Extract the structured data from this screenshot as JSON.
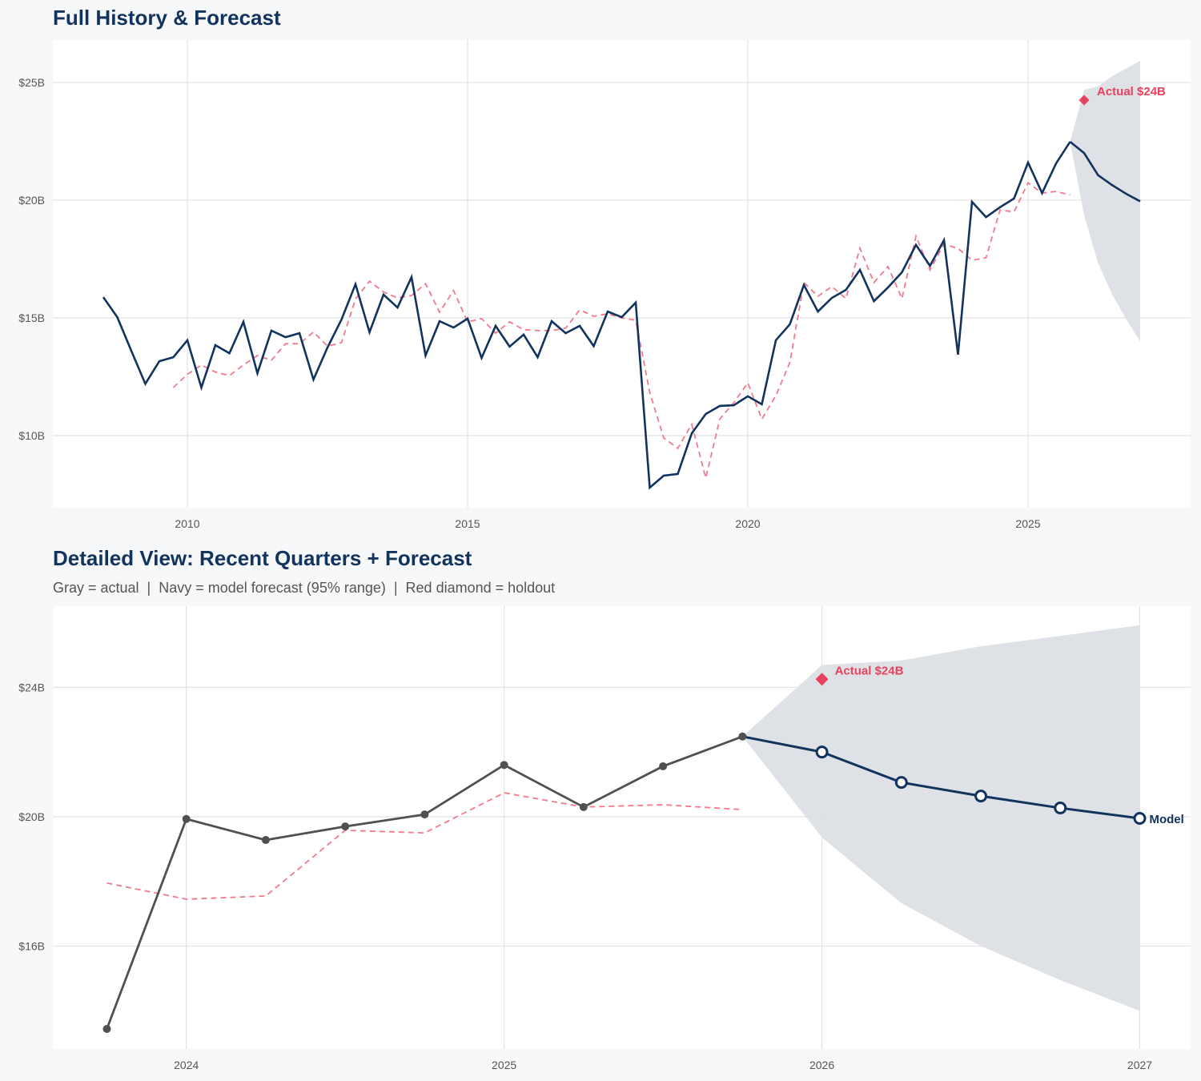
{
  "colors": {
    "background": "#f7f8fa",
    "plot_background": "#ffffff",
    "grid": "#e2e2e2",
    "navy": "#12335e",
    "actual_gray": "#505050",
    "fitted_red": "#f07a8c",
    "holdout_red": "#e8435e",
    "band": "#dcdfe5"
  },
  "chart_data": [
    {
      "type": "line",
      "title": "Full History & Forecast",
      "xlim": [
        2007.6,
        2027.9
      ],
      "ylim": [
        6.94,
        26.8
      ],
      "grid": true,
      "xticks": {
        "values": [
          2010,
          2015,
          2020,
          2025
        ],
        "labels": [
          "2010",
          "2015",
          "2020",
          "2025"
        ]
      },
      "yticks": {
        "values": [
          10,
          15,
          20,
          25
        ],
        "labels": [
          "$10B",
          "$15B",
          "$20B",
          "$25B"
        ]
      },
      "actual": {
        "x": [
          2008.5,
          2008.75,
          2009,
          2009.25,
          2009.5,
          2009.75,
          2010,
          2010.25,
          2010.5,
          2010.75,
          2011,
          2011.25,
          2011.5,
          2011.75,
          2012,
          2012.25,
          2012.5,
          2012.75,
          2013,
          2013.25,
          2013.5,
          2013.75,
          2014,
          2014.25,
          2014.5,
          2014.75,
          2015,
          2015.25,
          2015.5,
          2015.75,
          2016,
          2016.25,
          2016.5,
          2016.75,
          2017,
          2017.25,
          2017.5,
          2017.75,
          2018,
          2018.25,
          2018.5,
          2018.75,
          2019,
          2019.25,
          2019.5,
          2019.75,
          2020,
          2020.25,
          2020.5,
          2020.75,
          2021,
          2021.25,
          2021.5,
          2021.75,
          2022,
          2022.25,
          2022.5,
          2022.75,
          2023,
          2023.25,
          2023.5,
          2023.75,
          2024,
          2024.25,
          2024.5,
          2024.75,
          2025,
          2025.25,
          2025.5,
          2025.75
        ],
        "values": [
          15.88,
          15.03,
          13.6,
          12.2,
          13.16,
          13.33,
          14.05,
          12.04,
          13.84,
          13.5,
          14.83,
          12.65,
          14.46,
          14.18,
          14.35,
          12.38,
          13.74,
          14.93,
          16.43,
          14.39,
          15.99,
          15.44,
          16.73,
          13.4,
          14.86,
          14.59,
          14.97,
          13.3,
          14.66,
          13.78,
          14.29,
          13.33,
          14.86,
          14.35,
          14.66,
          13.8,
          15.27,
          15.03,
          15.65,
          7.79,
          8.3,
          8.37,
          10.1,
          10.92,
          11.26,
          11.29,
          11.67,
          11.33,
          14.05,
          14.73,
          16.4,
          15.27,
          15.85,
          16.19,
          17.04,
          15.71,
          16.29,
          16.94,
          18.1,
          17.21,
          18.3,
          13.44,
          19.93,
          19.28,
          19.7,
          20.07,
          21.6,
          20.3,
          21.56,
          22.48
        ]
      },
      "fitted": {
        "x": [
          2009.75,
          2010,
          2010.25,
          2010.5,
          2010.75,
          2011,
          2011.25,
          2011.5,
          2011.75,
          2012,
          2012.25,
          2012.5,
          2012.75,
          2013,
          2013.25,
          2013.5,
          2013.75,
          2014,
          2014.25,
          2014.5,
          2014.75,
          2015,
          2015.25,
          2015.5,
          2015.75,
          2016,
          2016.25,
          2016.5,
          2016.75,
          2017,
          2017.25,
          2017.5,
          2017.75,
          2018,
          2018.25,
          2018.5,
          2018.75,
          2019,
          2019.25,
          2019.5,
          2019.75,
          2020,
          2020.25,
          2020.5,
          2020.75,
          2021,
          2021.25,
          2021.5,
          2021.75,
          2022,
          2022.25,
          2022.5,
          2022.75,
          2023,
          2023.25,
          2023.5,
          2023.75,
          2024,
          2024.25,
          2024.5,
          2024.75,
          2025,
          2025.25,
          2025.5,
          2025.75
        ],
        "values": [
          12.04,
          12.6,
          13.0,
          12.7,
          12.55,
          13.0,
          13.4,
          13.2,
          13.9,
          13.9,
          14.4,
          13.8,
          13.95,
          15.8,
          16.56,
          16.1,
          15.85,
          15.95,
          16.45,
          15.24,
          16.16,
          14.83,
          14.97,
          14.35,
          14.83,
          14.5,
          14.46,
          14.46,
          14.56,
          15.34,
          15.07,
          15.17,
          15.0,
          14.9,
          11.84,
          9.9,
          9.46,
          10.48,
          8.2,
          10.7,
          11.4,
          12.24,
          10.7,
          11.7,
          13.1,
          16.5,
          15.92,
          16.33,
          15.82,
          17.96,
          16.5,
          17.18,
          15.82,
          18.47,
          17.04,
          18.13,
          17.95,
          17.45,
          17.55,
          19.58,
          19.5,
          20.74,
          20.3,
          20.37,
          20.22
        ]
      },
      "forecast": {
        "x": [
          2025.75,
          2026,
          2026.25,
          2026.5,
          2026.75,
          2027
        ],
        "values": [
          22.48,
          22.0,
          21.06,
          20.64,
          20.27,
          19.95
        ],
        "lower": [
          22.48,
          19.36,
          17.33,
          16.0,
          14.95,
          14.0
        ],
        "upper": [
          22.48,
          24.69,
          24.83,
          25.27,
          25.59,
          25.92
        ]
      },
      "holdout": {
        "x": 2026,
        "value": 24.25,
        "label": "Actual $24B"
      }
    },
    {
      "type": "line",
      "title": "Detailed View: Recent Quarters + Forecast",
      "subtitle": "Gray = actual  |  Navy = model forecast (95% range)  |  Red diamond = holdout",
      "xlim": [
        2023.58,
        2027.16
      ],
      "ylim": [
        12.82,
        26.51
      ],
      "grid": true,
      "xticks": {
        "values": [
          2024,
          2025,
          2026,
          2027
        ],
        "labels": [
          "2024",
          "2025",
          "2026",
          "2027"
        ]
      },
      "yticks": {
        "values": [
          16,
          20,
          24
        ],
        "labels": [
          "$16B",
          "$20B",
          "$24B"
        ]
      },
      "actual": {
        "x": [
          2023.75,
          2024,
          2024.25,
          2024.5,
          2024.75,
          2025,
          2025.25,
          2025.5,
          2025.75
        ],
        "values": [
          13.44,
          19.93,
          19.28,
          19.7,
          20.07,
          21.6,
          20.3,
          21.56,
          22.48
        ]
      },
      "fitted": {
        "x": [
          2023.75,
          2024,
          2024.25,
          2024.5,
          2024.75,
          2025,
          2025.25,
          2025.5,
          2025.75
        ],
        "values": [
          17.95,
          17.45,
          17.55,
          19.58,
          19.5,
          20.74,
          20.3,
          20.37,
          20.22
        ]
      },
      "forecast": {
        "x": [
          2025.75,
          2026,
          2026.25,
          2026.5,
          2026.75,
          2027
        ],
        "values": [
          22.48,
          22.0,
          21.06,
          20.64,
          20.27,
          19.95
        ],
        "lower": [
          22.48,
          19.36,
          17.33,
          16.0,
          14.95,
          14.0
        ],
        "upper": [
          22.48,
          24.69,
          24.83,
          25.27,
          25.59,
          25.92
        ],
        "end_label": "Model"
      },
      "holdout": {
        "x": 2026,
        "value": 24.25,
        "label": "Actual $24B"
      }
    }
  ]
}
